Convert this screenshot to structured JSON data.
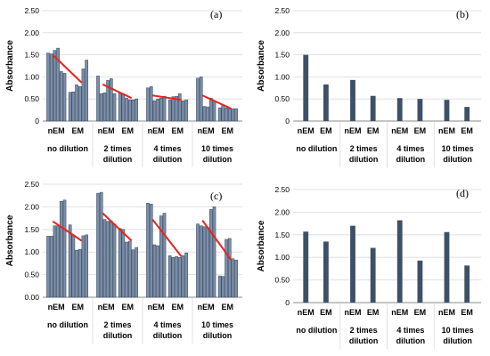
{
  "colors": {
    "bar": "#3d5068",
    "bar_light": "#7d8fa8",
    "trend": "#e8231e",
    "grid": "#d9d9d9",
    "axis": "#888888"
  },
  "chart_data": [
    {
      "panel": "(a)",
      "type": "bar",
      "ylabel": "Absorbance",
      "ylim": [
        0,
        2.5
      ],
      "yticks": [
        "0",
        "0.50",
        "1.00",
        "1.50",
        "2.00",
        "2.50"
      ],
      "categories": [
        {
          "labels": [
            "nEM",
            "EM"
          ],
          "sub": [
            "no dilution"
          ],
          "nEM": [
            1.54,
            1.52,
            1.6,
            1.65,
            1.12,
            1.08
          ],
          "EM": [
            0.65,
            0.66,
            0.82,
            0.78,
            1.18,
            1.38
          ],
          "trend": [
            1.5,
            0.87
          ]
        },
        {
          "labels": [
            "nEM",
            "EM"
          ],
          "sub": [
            "2 times",
            "dilution"
          ],
          "nEM": [
            1.02,
            0.62,
            0.64,
            0.92,
            0.96,
            0.62
          ],
          "EM": [
            0.64,
            0.62,
            0.52,
            0.48,
            0.48,
            0.5
          ],
          "trend": [
            0.83,
            0.52
          ]
        },
        {
          "labels": [
            "nEM",
            "EM"
          ],
          "sub": [
            "4 times",
            "dilution"
          ],
          "nEM": [
            0.75,
            0.78,
            0.46,
            0.5,
            0.52,
            0.56
          ],
          "EM": [
            0.48,
            0.55,
            0.56,
            0.62,
            0.46,
            0.48
          ],
          "trend": [
            0.58,
            0.48
          ]
        },
        {
          "labels": [
            "nEM",
            "EM"
          ],
          "sub": [
            "10 times",
            "dilution"
          ],
          "nEM": [
            0.97,
            1.0,
            0.33,
            0.32,
            0.52,
            0.46
          ],
          "EM": [
            0.3,
            0.36,
            0.3,
            0.28,
            0.28,
            0.28
          ],
          "trend": [
            0.58,
            0.28
          ]
        }
      ]
    },
    {
      "panel": "(b)",
      "type": "bar",
      "ylabel": "Absorbance",
      "ylim": [
        0,
        2.5
      ],
      "yticks": [
        "0",
        "0.50",
        "1.00",
        "1.50",
        "2.00",
        "2.50"
      ],
      "categories": [
        {
          "labels": [
            "nEM",
            "EM"
          ],
          "sub": [
            "no dilution"
          ],
          "nEM": [
            1.5
          ],
          "EM": [
            0.83
          ]
        },
        {
          "labels": [
            "nEM",
            "EM"
          ],
          "sub": [
            "2 times",
            "dilution"
          ],
          "nEM": [
            0.93
          ],
          "EM": [
            0.57
          ]
        },
        {
          "labels": [
            "nEM",
            "EM"
          ],
          "sub": [
            "4 times",
            "dilution"
          ],
          "nEM": [
            0.52
          ],
          "EM": [
            0.5
          ]
        },
        {
          "labels": [
            "nEM",
            "EM"
          ],
          "sub": [
            "10 times",
            "dilution"
          ],
          "nEM": [
            0.48
          ],
          "EM": [
            0.32
          ]
        }
      ]
    },
    {
      "panel": "(c)",
      "type": "bar",
      "ylabel": "Absorbance",
      "ylim": [
        0,
        2.5
      ],
      "yticks": [
        "0.00",
        "0.50",
        "1.00",
        "1.50",
        "2.00",
        "2.50"
      ],
      "categories": [
        {
          "labels": [
            "nEM",
            "EM"
          ],
          "sub": [
            "no dilution"
          ],
          "nEM": [
            1.35,
            1.35,
            1.58,
            1.58,
            2.12,
            2.15
          ],
          "EM": [
            1.6,
            1.38,
            1.04,
            1.06,
            1.36,
            1.38
          ],
          "trend": [
            1.68,
            1.25
          ]
        },
        {
          "labels": [
            "nEM",
            "EM"
          ],
          "sub": [
            "2 times",
            "dilution"
          ],
          "nEM": [
            2.3,
            2.32,
            1.72,
            1.68,
            1.68,
            1.62
          ],
          "EM": [
            1.52,
            1.5,
            1.22,
            1.24,
            1.05,
            1.1
          ],
          "trend": [
            1.86,
            1.25
          ]
        },
        {
          "labels": [
            "nEM",
            "EM"
          ],
          "sub": [
            "4 times",
            "dilution"
          ],
          "nEM": [
            2.08,
            2.06,
            1.16,
            1.14,
            1.8,
            1.86
          ],
          "EM": [
            0.92,
            0.88,
            0.9,
            0.88,
            0.92,
            0.98
          ],
          "trend": [
            1.72,
            0.9
          ]
        },
        {
          "labels": [
            "nEM",
            "EM"
          ],
          "sub": [
            "10 times",
            "dilution"
          ],
          "nEM": [
            1.62,
            1.58,
            1.56,
            1.54,
            1.94,
            2.0
          ],
          "EM": [
            0.47,
            0.46,
            1.28,
            1.3,
            0.85,
            0.82
          ],
          "trend": [
            1.7,
            0.82
          ]
        }
      ]
    },
    {
      "panel": "(d)",
      "type": "bar",
      "ylabel": "Absorbance",
      "ylim": [
        0,
        2.5
      ],
      "yticks": [
        "0",
        "0.50",
        "1.00",
        "1.50",
        "2.00",
        "2.50"
      ],
      "categories": [
        {
          "labels": [
            "nEM",
            "EM"
          ],
          "sub": [
            "no dilution"
          ],
          "nEM": [
            1.57
          ],
          "EM": [
            1.35
          ]
        },
        {
          "labels": [
            "nEM",
            "EM"
          ],
          "sub": [
            "2 times",
            "dilution"
          ],
          "nEM": [
            1.7
          ],
          "EM": [
            1.21
          ]
        },
        {
          "labels": [
            "nEM",
            "EM"
          ],
          "sub": [
            "4 times",
            "dilution"
          ],
          "nEM": [
            1.82
          ],
          "EM": [
            0.93
          ]
        },
        {
          "labels": [
            "nEM",
            "EM"
          ],
          "sub": [
            "10 times",
            "dilution"
          ],
          "nEM": [
            1.56
          ],
          "EM": [
            0.82
          ]
        }
      ]
    }
  ]
}
